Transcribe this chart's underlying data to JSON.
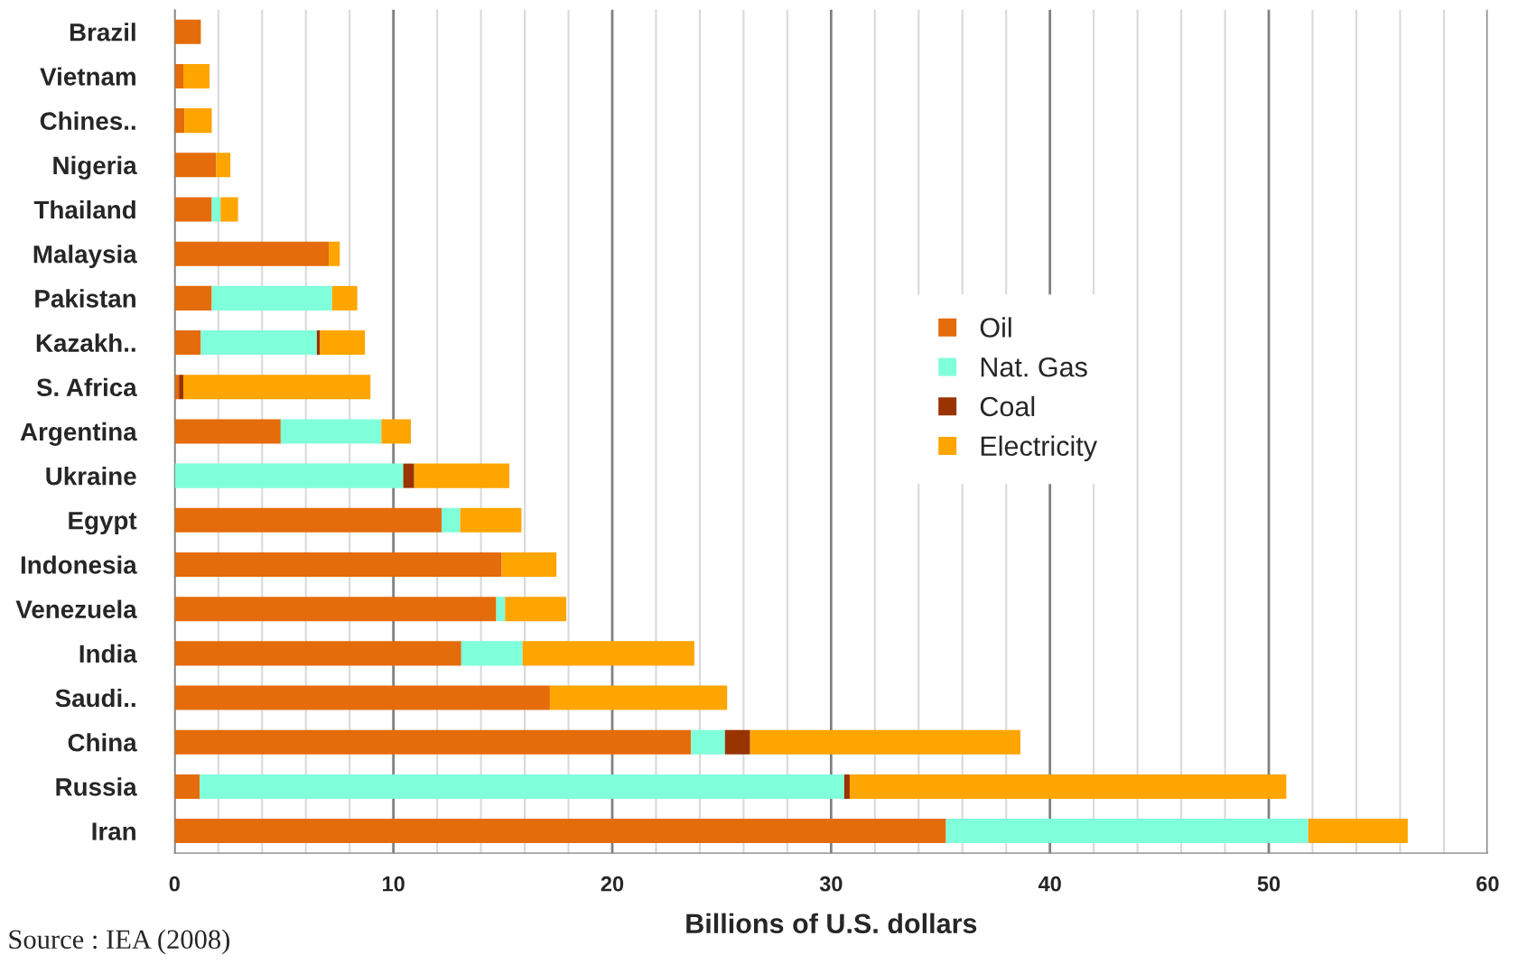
{
  "chart_data": {
    "type": "bar",
    "orientation": "horizontal",
    "stacked": true,
    "xlabel": "Billions of U.S. dollars",
    "categories": [
      "Brazil",
      "Vietnam",
      "Chines..",
      "Nigeria",
      "Thailand",
      "Malaysia",
      "Pakistan",
      "Kazakh..",
      "S. Africa",
      "Argentina",
      "Ukraine",
      "Egypt",
      "Indonesia",
      "Venezuela",
      "India",
      "Saudi..",
      "China",
      "Russia",
      "Iran"
    ],
    "series": [
      {
        "name": "Oil",
        "color": "#e46c0a",
        "values": [
          1.2,
          0.4,
          0.45,
          1.9,
          1.7,
          7.05,
          1.7,
          1.2,
          0.2,
          4.85,
          0,
          12.2,
          14.95,
          14.7,
          13.1,
          17.15,
          23.6,
          1.15,
          35.25
        ]
      },
      {
        "name": "Nat. Gas",
        "color": "#80ffdb",
        "values": [
          0,
          0,
          0,
          0,
          0.4,
          0,
          5.5,
          5.3,
          0,
          4.6,
          10.45,
          0.85,
          0,
          0.4,
          2.8,
          0,
          1.55,
          29.45,
          16.55
        ]
      },
      {
        "name": "Coal",
        "color": "#993300",
        "values": [
          0,
          0,
          0,
          0,
          0,
          0,
          0,
          0.15,
          0.2,
          0,
          0.5,
          0,
          0,
          0,
          0,
          0,
          1.15,
          0.25,
          0
        ]
      },
      {
        "name": "Electricity",
        "color": "#ffa500",
        "values": [
          0,
          1.2,
          1.25,
          0.65,
          0.8,
          0.5,
          1.15,
          2.05,
          8.55,
          1.35,
          4.35,
          2.8,
          2.5,
          2.8,
          7.85,
          8.1,
          12.35,
          19.95,
          4.55
        ]
      }
    ],
    "xlim": [
      0,
      60
    ],
    "xticks": [
      0,
      {
        "value": 2,
        "label": null
      },
      {
        "value": 4,
        "label": null
      },
      {
        "value": 6,
        "label": null
      },
      {
        "value": 8,
        "label": null
      },
      10,
      {
        "value": 12,
        "label": null
      },
      {
        "value": 14,
        "label": null
      },
      {
        "value": 16,
        "label": null
      },
      {
        "value": 18,
        "label": null
      },
      20,
      {
        "value": 22,
        "label": null
      },
      {
        "value": 24,
        "label": null
      },
      {
        "value": 26,
        "label": null
      },
      {
        "value": 28,
        "label": null
      },
      30,
      {
        "value": 32,
        "label": null
      },
      {
        "value": 34,
        "label": null
      },
      {
        "value": 36,
        "label": null
      },
      {
        "value": 38,
        "label": null
      },
      40,
      {
        "value": 42,
        "label": null
      },
      {
        "value": 44,
        "label": null
      },
      {
        "value": 46,
        "label": null
      },
      {
        "value": 48,
        "label": null
      },
      50,
      {
        "value": 52,
        "label": null
      },
      {
        "value": 54,
        "label": null
      },
      {
        "value": 56,
        "label": null
      },
      {
        "value": 58,
        "label": null
      },
      60
    ],
    "grid": "x",
    "legend": "center right",
    "annotations": [
      "Source : IEA (2008)"
    ]
  }
}
